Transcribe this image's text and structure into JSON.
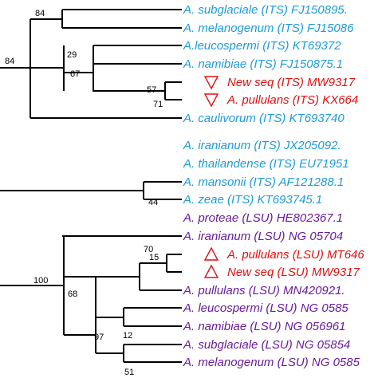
{
  "colors": {
    "its": "#1E9BD7",
    "highlight": "#DD1111",
    "lsu": "#6A1B9A",
    "branch": "#000000"
  },
  "leaves": [
    {
      "label": "A. subglaciale (ITS) FJ150895.",
      "color": "its",
      "marker": "none"
    },
    {
      "label": "A. melanogenum (ITS) FJ15086",
      "color": "its",
      "marker": "none"
    },
    {
      "label": "A.leucospermi (ITS) KT69372",
      "color": "its",
      "marker": "none"
    },
    {
      "label": "A. namibiae (ITS) FJ150875.1",
      "color": "its",
      "marker": "none"
    },
    {
      "label": "New seq (ITS) MW9317",
      "color": "highlight",
      "marker": "triangle-down"
    },
    {
      "label": "A. pullulans (ITS) KX664",
      "color": "highlight",
      "marker": "triangle-down"
    },
    {
      "label": "A. caulivorum (ITS) KT693740",
      "color": "its",
      "marker": "none"
    },
    {
      "label": "A. iranianum (ITS) JX205092.",
      "color": "its",
      "marker": "none"
    },
    {
      "label": "A. thailandense (ITS) EU71951",
      "color": "its",
      "marker": "none"
    },
    {
      "label": "A. mansonii (ITS) AF121288.1",
      "color": "its",
      "marker": "none"
    },
    {
      "label": "A. zeae (ITS) KT693745.1",
      "color": "its",
      "marker": "none"
    },
    {
      "label": "A. proteae (LSU) HE802367.1",
      "color": "lsu",
      "marker": "none"
    },
    {
      "label": "A. iranianum (LSU) NG 05704",
      "color": "lsu",
      "marker": "none"
    },
    {
      "label": "A. pullulans (LSU) MT646",
      "color": "highlight",
      "marker": "triangle-up"
    },
    {
      "label": "New seq (LSU) MW9317",
      "color": "highlight",
      "marker": "triangle-up"
    },
    {
      "label": "A. pullulans (LSU) MN420921.",
      "color": "lsu",
      "marker": "none"
    },
    {
      "label": "A. leucospermi (LSU) NG 0585",
      "color": "lsu",
      "marker": "none"
    },
    {
      "label": "A. namibiae (LSU) NG 056961",
      "color": "lsu",
      "marker": "none"
    },
    {
      "label": "A. subglaciale (LSU) NG 05854",
      "color": "lsu",
      "marker": "none"
    },
    {
      "label": "A. melanogenum (LSU) NG 0585",
      "color": "lsu",
      "marker": "none"
    }
  ],
  "support_values": [
    "84",
    "84",
    "29",
    "67",
    "57",
    "71",
    "44",
    "100",
    "70",
    "15",
    "68",
    "97",
    "12",
    "51"
  ]
}
